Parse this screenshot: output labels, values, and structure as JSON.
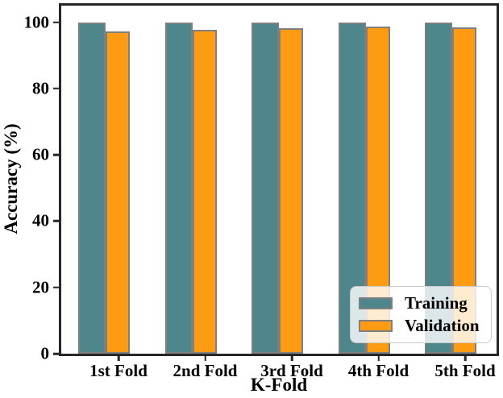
{
  "chart_data": {
    "type": "bar",
    "title": "",
    "categories": [
      "1st Fold",
      "2nd Fold",
      "3rd Fold",
      "4th Fold",
      "5th Fold"
    ],
    "series": [
      {
        "name": "Training",
        "color": "#4E868B",
        "values": [
          100,
          100,
          100,
          100,
          100
        ]
      },
      {
        "name": "Validation",
        "color": "#FD9C13",
        "values": [
          97.3,
          97.8,
          98.1,
          98.6,
          98.4
        ]
      }
    ],
    "xlabel": "K-Fold",
    "ylabel": "Accuracy (%)",
    "ylim": [
      0,
      105
    ],
    "yticks": [
      0,
      20,
      40,
      60,
      80,
      100
    ],
    "grid": false,
    "legend_position": "lower right",
    "bar_edge_color": "#7F7F7F",
    "spine_color": "#262626",
    "background_color": "#FFFFFF"
  }
}
